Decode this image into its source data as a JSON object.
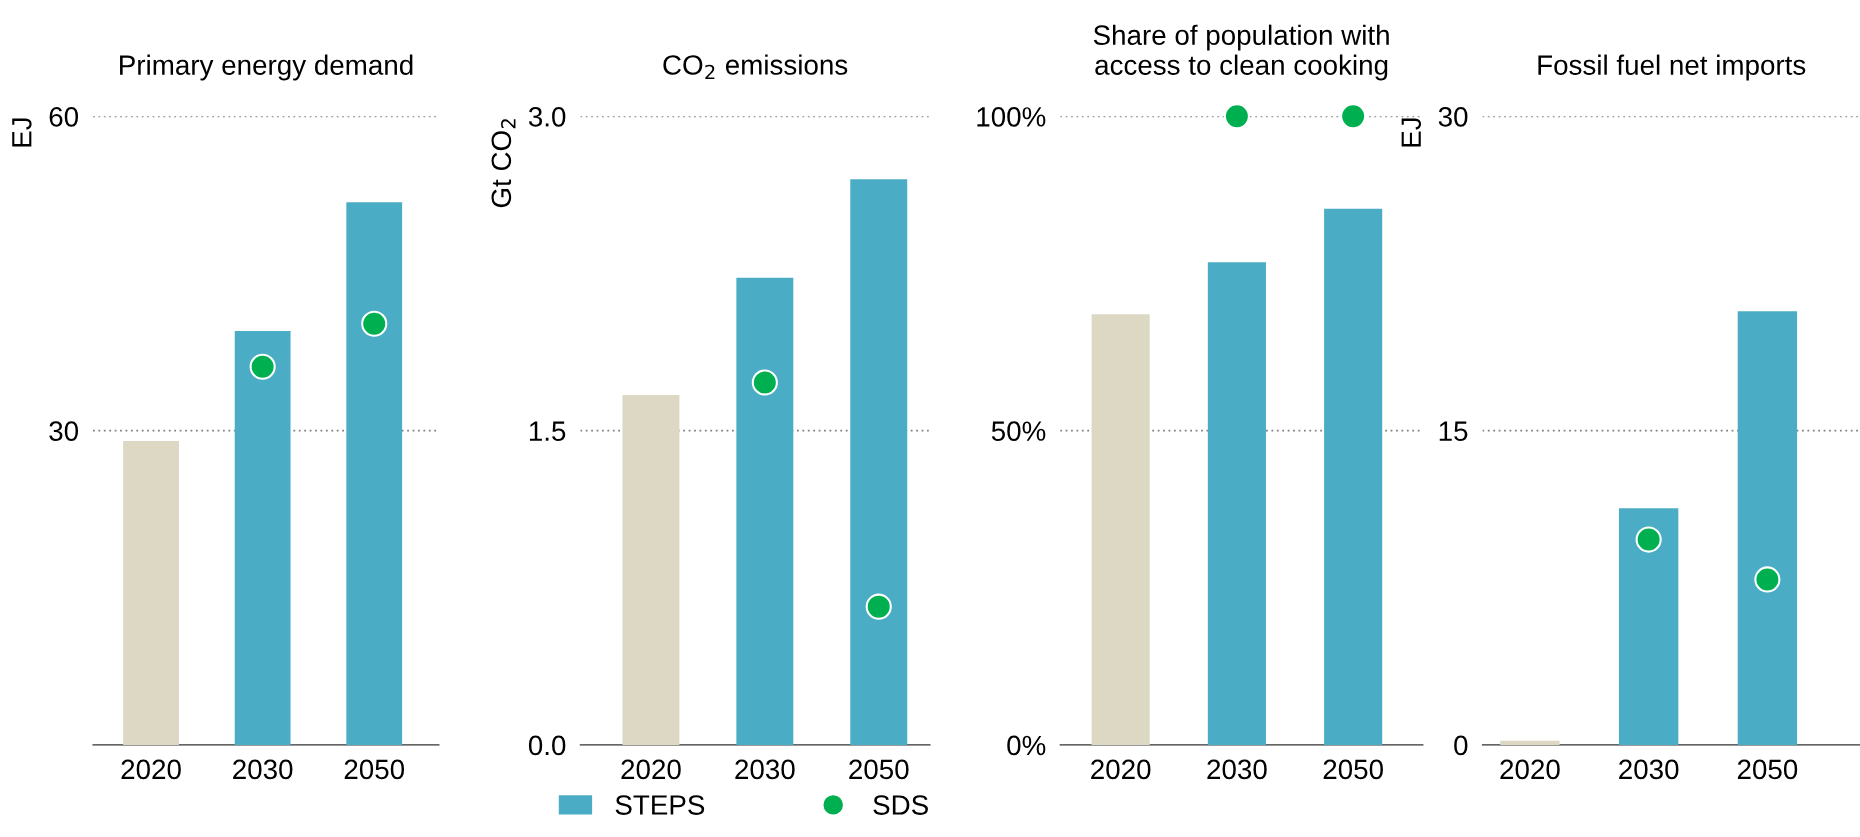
{
  "chart_data": [
    {
      "type": "bar",
      "title": "Primary energy demand",
      "ylabel": "EJ",
      "categories": [
        "2020",
        "2030",
        "2050"
      ],
      "ylim": [
        0,
        60
      ],
      "yticks": [
        {
          "value": 0,
          "label": null
        },
        30,
        60
      ],
      "grid": "y",
      "legend": "bottom",
      "series": [
        {
          "name": "STEPS",
          "color": "#4bacc6",
          "colors": [
            "#ddd8c4",
            "#4bacc6",
            "#4bacc6"
          ],
          "values": [
            29.0,
            39.5,
            51.8
          ]
        },
        {
          "name": "SDS",
          "type": "scatter",
          "color": "#00b050",
          "marker": "circle",
          "values": [
            null,
            36.1,
            40.2
          ]
        }
      ]
    },
    {
      "type": "bar",
      "title": "CO$_{2}$ emissions",
      "ylabel": "Gt CO$_{2}$",
      "categories": [
        "2020",
        "2030",
        "2050"
      ],
      "ylim": [
        0,
        3.0
      ],
      "yticks": [
        {
          "value": 0,
          "label": "0.0"
        },
        1.5,
        {
          "value": 3,
          "label": "3.0"
        }
      ],
      "grid": "y",
      "series": [
        {
          "color": "#4bacc6",
          "colors": [
            "#ddd8c4",
            "#4bacc6",
            "#4bacc6"
          ],
          "values": [
            1.67,
            2.23,
            2.7
          ]
        },
        {
          "type": "scatter",
          "color": "#00b050",
          "marker": "circle",
          "values": [
            null,
            1.73,
            0.66
          ]
        }
      ]
    },
    {
      "type": "bar",
      "title": "Share of population with\naccess to clean cooking",
      "categories": [
        "2020",
        "2030",
        "2050"
      ],
      "ylim": [
        0,
        100
      ],
      "yticks": [
        {
          "value": 0,
          "label": "0%"
        },
        {
          "value": 50,
          "label": "50%"
        },
        {
          "value": 100,
          "label": "100%"
        }
      ],
      "grid": "y",
      "series": [
        {
          "color": "#4bacc6",
          "colors": [
            "#ddd8c4",
            "#4bacc6",
            "#4bacc6"
          ],
          "values": [
            68.5,
            76.8,
            85.3
          ]
        },
        {
          "type": "scatter",
          "color": "#00b050",
          "marker": "circle",
          "values": [
            null,
            100,
            100
          ]
        }
      ]
    },
    {
      "type": "bar",
      "title": "Fossil fuel net imports",
      "ylabel": "EJ",
      "categories": [
        "2020",
        "2030",
        "2050"
      ],
      "ylim": [
        0,
        30
      ],
      "yticks": [
        0,
        15,
        30
      ],
      "grid": "y",
      "series": [
        {
          "color": "#4bacc6",
          "colors": [
            "#ddd8c4",
            "#4bacc6",
            "#4bacc6"
          ],
          "values": [
            0.2,
            11.3,
            20.7
          ]
        },
        {
          "type": "scatter",
          "color": "#00b050",
          "marker": "circle",
          "values": [
            null,
            9.8,
            7.9
          ]
        }
      ]
    }
  ]
}
